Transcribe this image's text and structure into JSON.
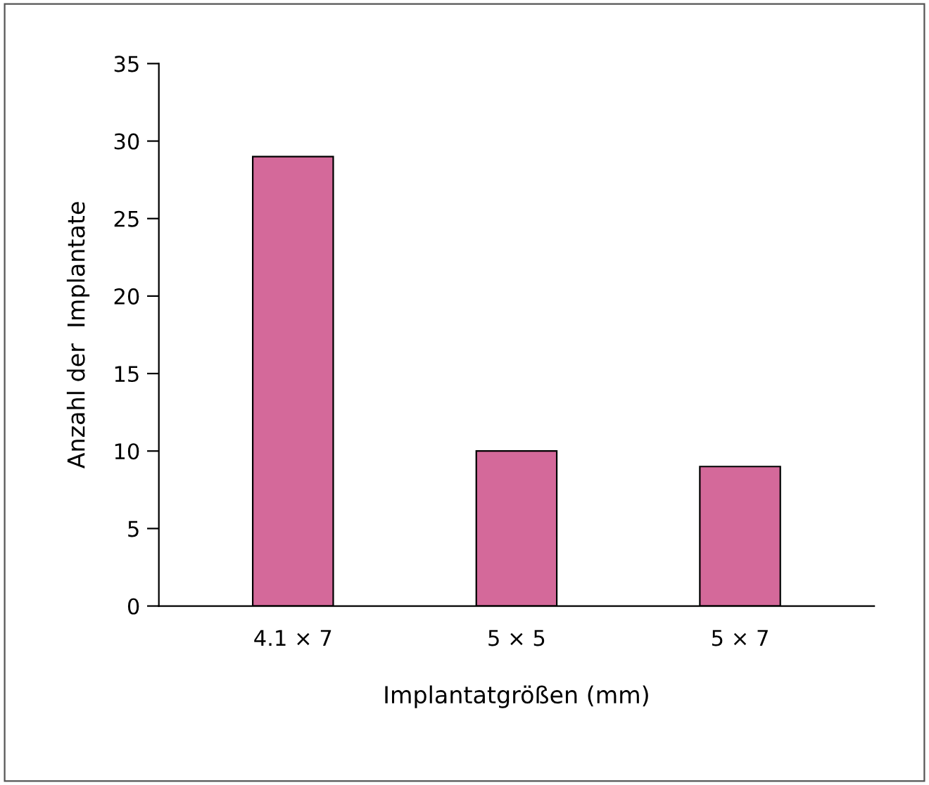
{
  "chart_data": {
    "type": "bar",
    "categories": [
      "4.1 × 7",
      "5 × 5",
      "5 × 7"
    ],
    "values": [
      29,
      10,
      9
    ],
    "color": "#d4699a",
    "xlabel": "Implantatgrößen (mm)",
    "ylabel": "Anzahl der  Implantate",
    "ylim": [
      0,
      35
    ],
    "yticks": [
      0,
      5,
      10,
      15,
      20,
      25,
      30,
      35
    ],
    "grid": false
  }
}
